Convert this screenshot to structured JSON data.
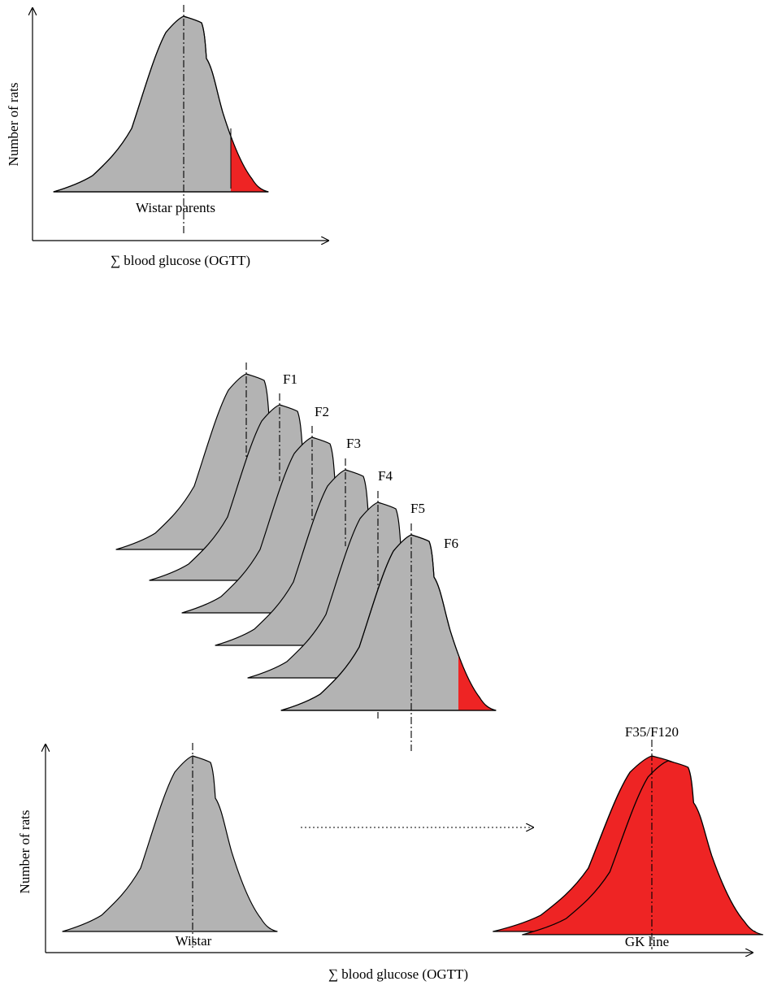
{
  "top_panel": {
    "y_axis_label": "Number of rats",
    "x_axis_label": "∑ blood glucose (OGTT)",
    "population_label": "Wistar parents"
  },
  "generations": {
    "labels": [
      "F1",
      "F2",
      "F3",
      "F4",
      "F5",
      "F6"
    ]
  },
  "bottom_panel": {
    "y_axis_label": "Number of rats",
    "x_axis_label": "∑ blood glucose (OGTT)",
    "left_population_label": "Wistar",
    "right_population_label": "GK line",
    "right_generation_label": "F35/F120"
  },
  "colors": {
    "distribution_fill": "#b3b3b3",
    "selected_tail_fill": "#ee2424"
  }
}
